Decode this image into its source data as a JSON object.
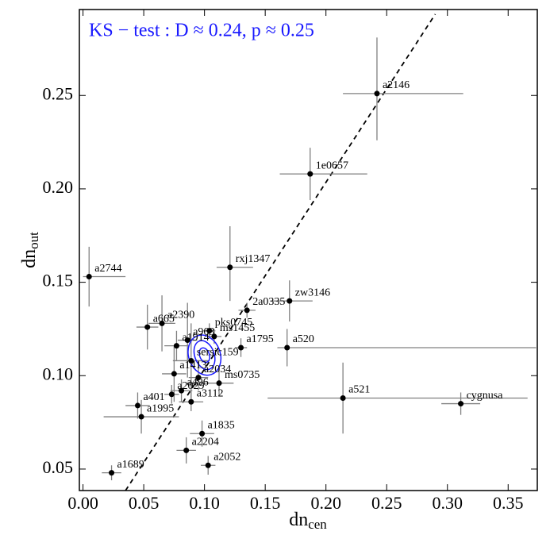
{
  "chart_data": {
    "type": "scatter",
    "annotation": "KS − test :  D ≈ 0.24,  p ≈ 0.25",
    "annotation_color": "#1a1aff",
    "xlabel": "dn",
    "xlabel_sub": "cen",
    "ylabel": "dn",
    "ylabel_sub": "out",
    "xlim": [
      -0.003,
      0.374
    ],
    "ylim": [
      0.0385,
      0.296
    ],
    "xticks": [
      {
        "value": 0,
        "label": "0.00"
      },
      0.05,
      {
        "value": 0.1,
        "label": "0.10"
      },
      0.15,
      {
        "value": 0.2,
        "label": "0.20"
      },
      0.25,
      {
        "value": 0.3,
        "label": "0.30"
      },
      0.35
    ],
    "yticks": [
      0.05,
      {
        "value": 0.1,
        "label": "0.10"
      },
      0.15,
      {
        "value": 0.2,
        "label": "0.20"
      },
      0.25
    ],
    "color": "#000000",
    "errorbar_color": "#808080",
    "labels": [
      "a2146",
      "1e0657",
      "a2744",
      "rxj1347",
      "zw3146",
      "2a0335",
      "a520",
      "a1795",
      "a521",
      "cygnusa",
      "pks0745",
      "ms1455",
      "a2390",
      "a665",
      "a963",
      "a1914",
      "sersic159",
      "a1413",
      "a2034",
      "ms0735",
      "a496",
      "a2029",
      "a3112",
      "a401",
      "a1995",
      "a1835",
      "a2204",
      "a2052",
      "a1689"
    ],
    "x": [
      0.242,
      0.187,
      0.005,
      0.121,
      0.17,
      0.135,
      0.168,
      0.13,
      0.214,
      0.311,
      0.104,
      0.108,
      0.065,
      0.053,
      0.086,
      0.077,
      0.089,
      0.075,
      0.095,
      0.112,
      0.081,
      0.073,
      0.089,
      0.045,
      0.048,
      0.098,
      0.085,
      0.103,
      0.0235
    ],
    "y": [
      0.251,
      0.208,
      0.153,
      0.158,
      0.14,
      0.135,
      0.115,
      0.115,
      0.088,
      0.085,
      0.124,
      0.121,
      0.128,
      0.126,
      0.119,
      0.116,
      0.108,
      0.101,
      0.099,
      0.096,
      0.092,
      0.09,
      0.086,
      0.084,
      0.078,
      0.069,
      0.06,
      0.052,
      0.048
    ],
    "xerr": [
      [
        0.028,
        0.071
      ],
      [
        0.025,
        0.047
      ],
      [
        0.005,
        0.03
      ],
      [
        0.011,
        0.019
      ],
      [
        0.016,
        0.019
      ],
      [
        0.007,
        0.007
      ],
      [
        0.008,
        0.205
      ],
      [
        0.005,
        0.005
      ],
      [
        0.062,
        0.152
      ],
      [
        0.016,
        0.016
      ],
      [
        0.005,
        0.005
      ],
      [
        0.006,
        0.006
      ],
      [
        0.011,
        0.011
      ],
      [
        0.009,
        0.009
      ],
      [
        0.008,
        0.008
      ],
      [
        0.01,
        0.01
      ],
      [
        0.015,
        0.015
      ],
      [
        0.01,
        0.01
      ],
      [
        0.008,
        0.008
      ],
      [
        0.012,
        0.012
      ],
      [
        0.009,
        0.009
      ],
      [
        0.006,
        0.006
      ],
      [
        0.01,
        0.01
      ],
      [
        0.01,
        0.01
      ],
      [
        0.031,
        0.031
      ],
      [
        0.01,
        0.01
      ],
      [
        0.008,
        0.008
      ],
      [
        0.006,
        0.006
      ],
      [
        0.008,
        0.008
      ]
    ],
    "yerr": [
      [
        0.025,
        0.03
      ],
      [
        0.014,
        0.014
      ],
      [
        0.016,
        0.016
      ],
      [
        0.018,
        0.022
      ],
      [
        0.011,
        0.011
      ],
      [
        0.004,
        0.004
      ],
      [
        0.01,
        0.01
      ],
      [
        0.005,
        0.005
      ],
      [
        0.019,
        0.019
      ],
      [
        0.006,
        0.006
      ],
      [
        0.004,
        0.004
      ],
      [
        0.004,
        0.004
      ],
      [
        0.015,
        0.015
      ],
      [
        0.012,
        0.012
      ],
      [
        0.02,
        0.02
      ],
      [
        0.008,
        0.008
      ],
      [
        0.02,
        0.02
      ],
      [
        0.015,
        0.015
      ],
      [
        0.007,
        0.007
      ],
      [
        0.007,
        0.007
      ],
      [
        0.006,
        0.006
      ],
      [
        0.005,
        0.005
      ],
      [
        0.005,
        0.005
      ],
      [
        0.007,
        0.007
      ],
      [
        0.009,
        0.009
      ],
      [
        0.007,
        0.007
      ],
      [
        0.007,
        0.007
      ],
      [
        0.005,
        0.005
      ],
      [
        0.004,
        0.004
      ]
    ],
    "reference_line": {
      "x": [
        0.035,
        0.29
      ],
      "y": [
        0.0385,
        0.2935
      ]
    },
    "contours": {
      "color": "#1a1aff",
      "center": [
        0.1,
        0.111
      ],
      "rx": [
        0.004,
        0.008,
        0.013
      ],
      "ry": [
        0.004,
        0.008,
        0.011
      ]
    }
  }
}
